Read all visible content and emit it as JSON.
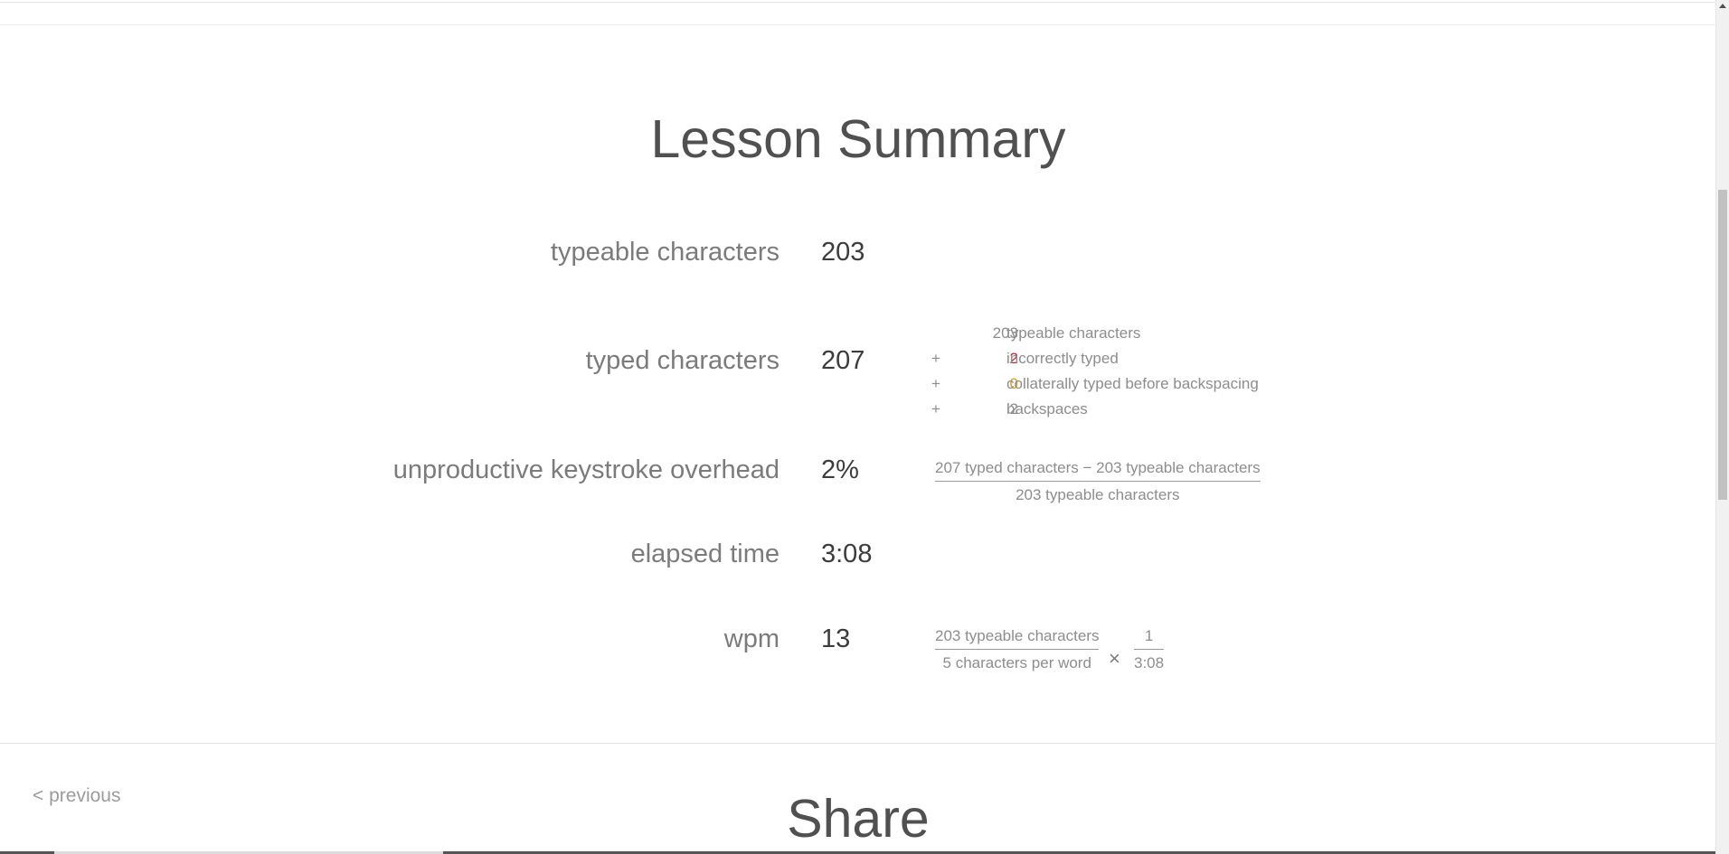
{
  "summary": {
    "title": "Lesson Summary",
    "typeable": {
      "label": "typeable characters",
      "value": "203"
    },
    "typed": {
      "label": "typed characters",
      "value": "207",
      "breakdown": [
        {
          "op": "",
          "num": "203",
          "text": "typeable characters",
          "color": "#8d8d8d"
        },
        {
          "op": "+",
          "num": "2",
          "text": "incorrectly typed",
          "color": "#c8202f"
        },
        {
          "op": "+",
          "num": "0",
          "text": "collaterally typed before backspacing",
          "color": "#e39b1d"
        },
        {
          "op": "+",
          "num": "2",
          "text": "backspaces",
          "color": "#8d8d8d"
        }
      ]
    },
    "overhead": {
      "label": "unproductive keystroke overhead",
      "value": "2%",
      "numerator": "207 typed characters − 203 typeable characters",
      "denominator": "203 typeable characters"
    },
    "elapsed": {
      "label": "elapsed time",
      "value": "3:08"
    },
    "wpm": {
      "label": "wpm",
      "value": "13",
      "frac1_num": "203 typeable characters",
      "frac1_den": "5 characters per word",
      "times": "×",
      "frac2_num": "1",
      "frac2_den": "3:08"
    }
  },
  "nav": {
    "previous": "< previous"
  },
  "share": {
    "title": "Share"
  }
}
